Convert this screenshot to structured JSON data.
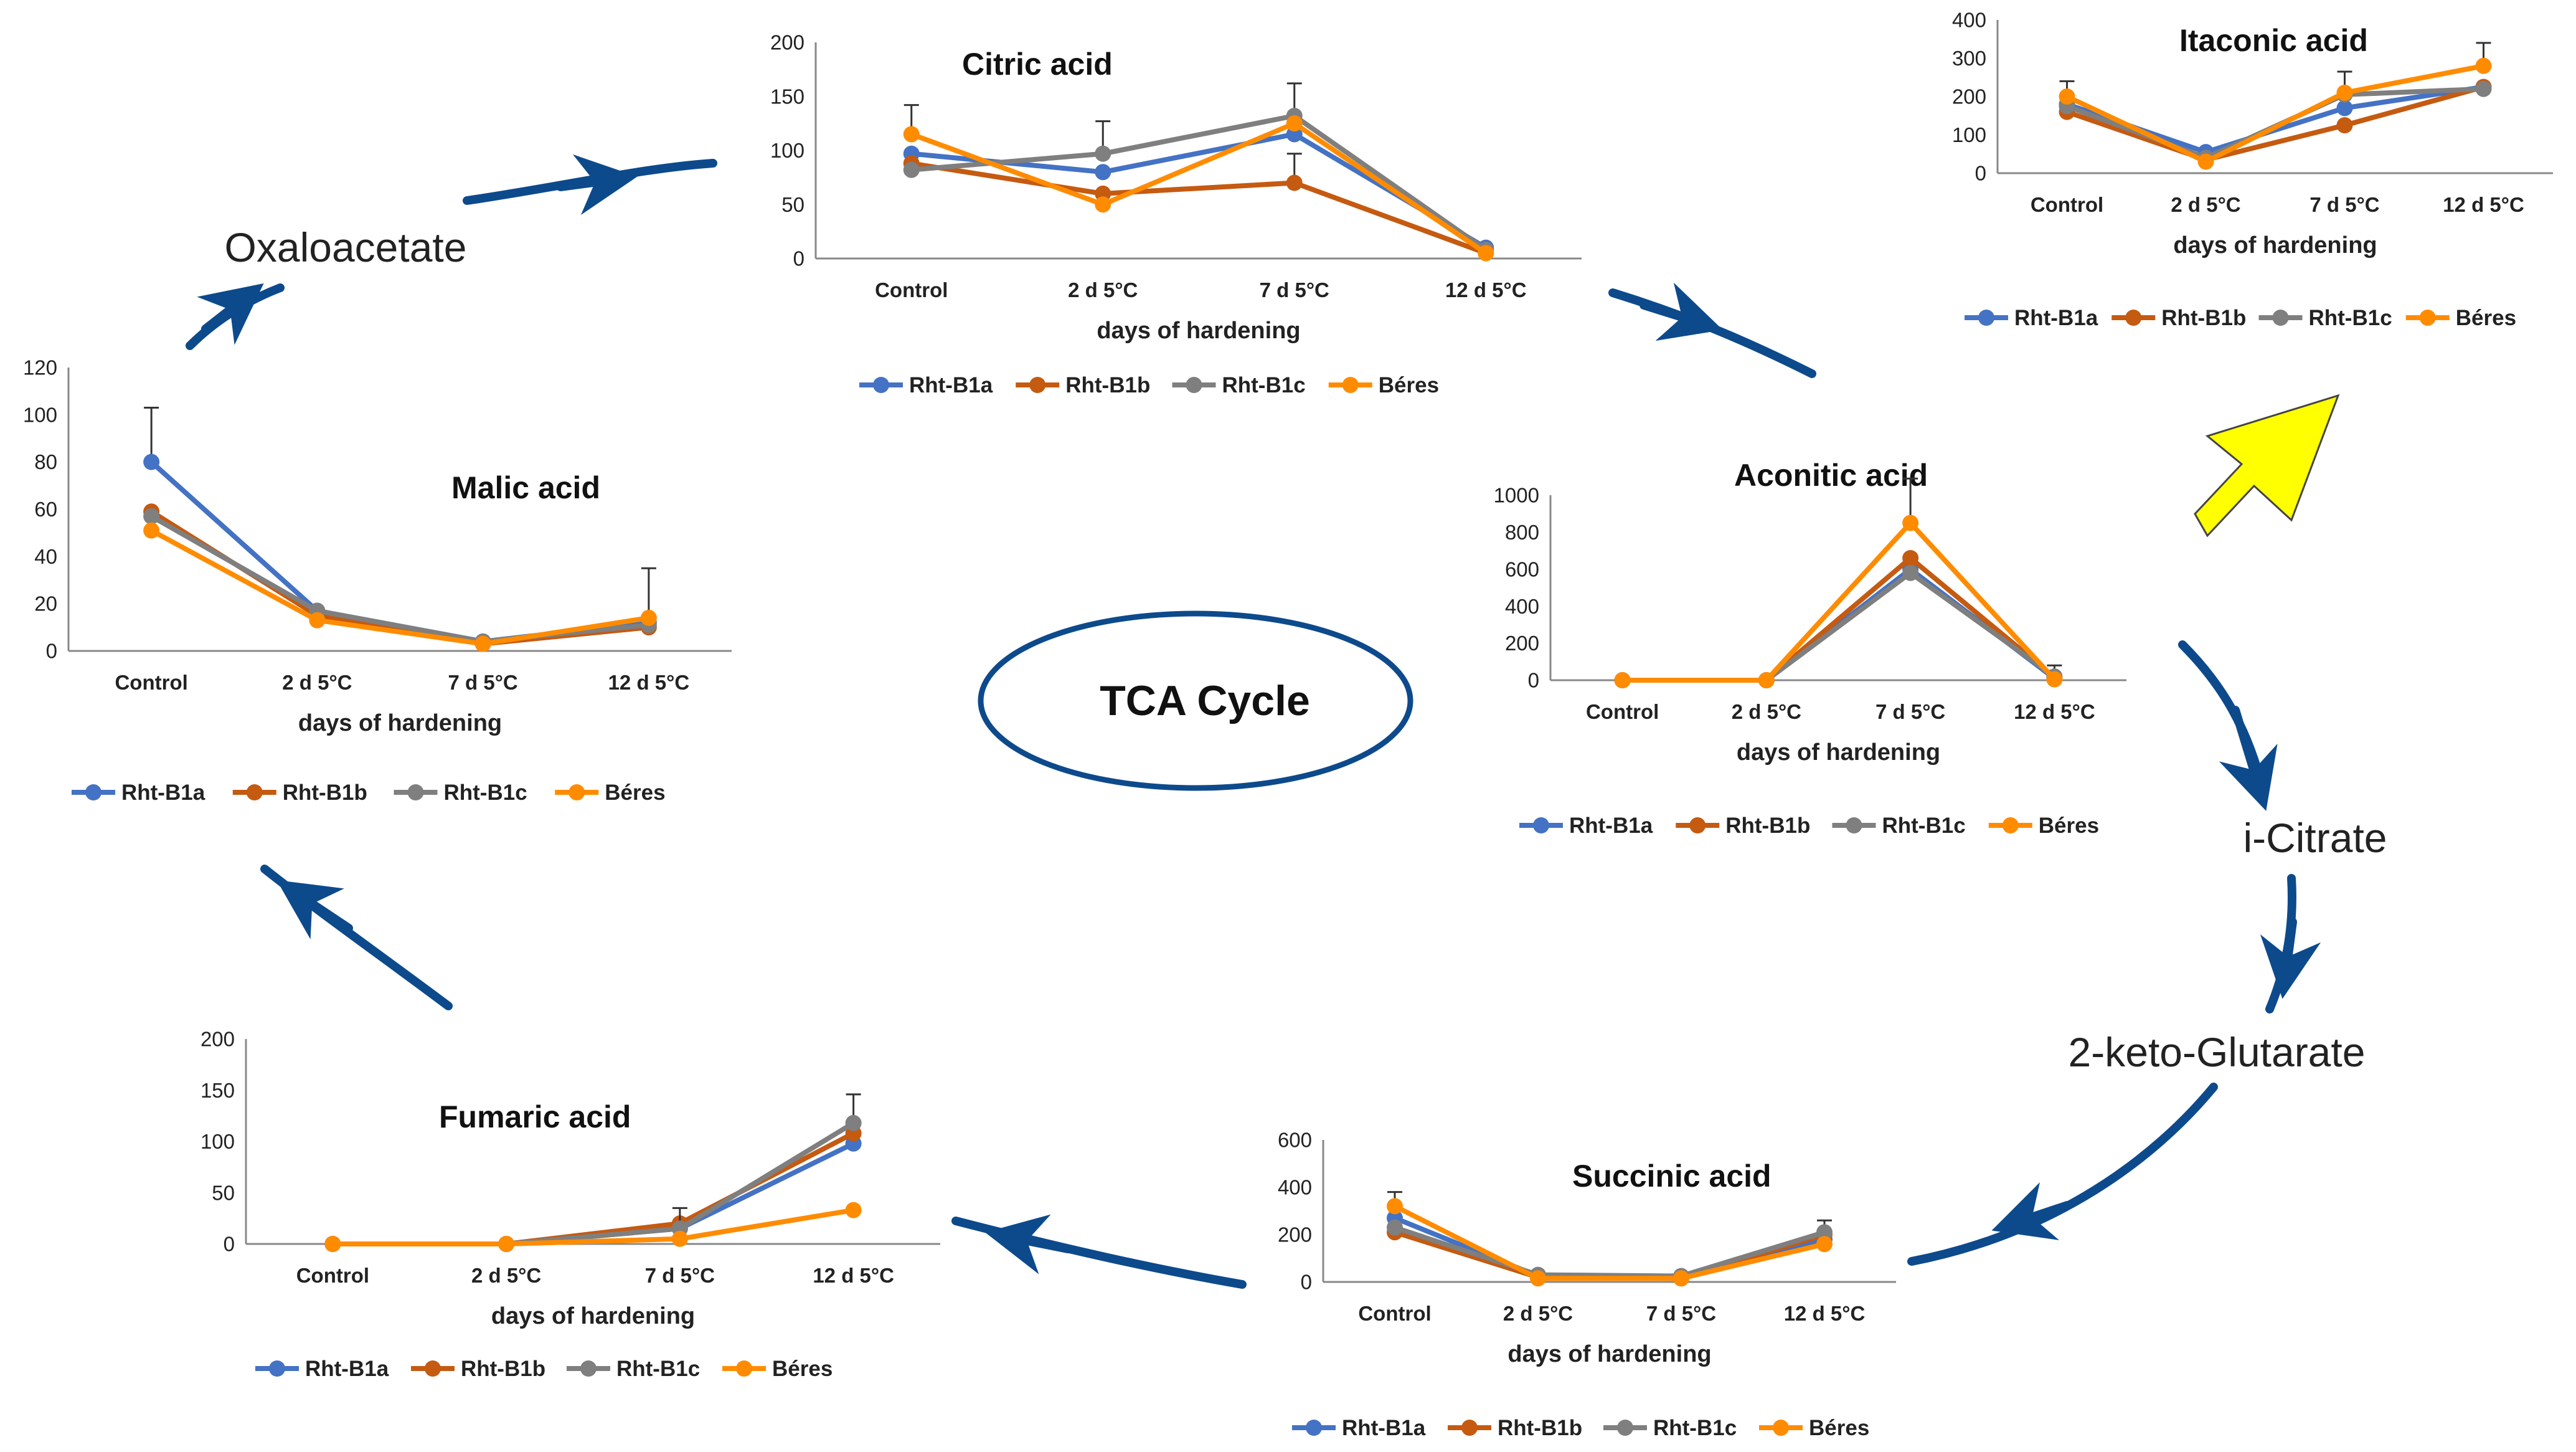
{
  "colors": {
    "Rht-B1a": "#4472C4",
    "Rht-B1b": "#C55A11",
    "Rht-B1c": "#7F7F7F",
    "Béres": "#FF8C00",
    "cycle": "#0D4A8C",
    "highlight_arrow": "#FFFF00"
  },
  "cycle": {
    "center_label": "TCA Cycle",
    "intermediates": {
      "oxaloacetate": "Oxaloacetate",
      "i_citrate": "i-Citrate",
      "keto_glutarate": "2-keto-Glutarate"
    }
  },
  "chart_data": [
    {
      "id": "citric",
      "type": "line",
      "title": "Citric acid",
      "xlabel": "days of hardening",
      "ylabel": "",
      "categories": [
        "Control",
        "2 d 5°C",
        "7 d 5°C",
        "12 d 5°C"
      ],
      "ylim": [
        0,
        200
      ],
      "yticks": [
        0,
        50,
        100,
        150,
        200
      ],
      "series": [
        {
          "name": "Rht-B1a",
          "values": [
            97,
            80,
            115,
            10
          ],
          "errors": [
            0,
            0,
            0,
            0
          ]
        },
        {
          "name": "Rht-B1b",
          "values": [
            88,
            60,
            70,
            5
          ],
          "errors": [
            0,
            0,
            27,
            0
          ]
        },
        {
          "name": "Rht-B1c",
          "values": [
            82,
            97,
            132,
            8
          ],
          "errors": [
            0,
            30,
            30,
            0
          ]
        },
        {
          "name": "Béres",
          "values": [
            115,
            50,
            125,
            5
          ],
          "errors": [
            27,
            0,
            0,
            0
          ]
        }
      ]
    },
    {
      "id": "itaconic",
      "type": "line",
      "title": "Itaconic acid",
      "xlabel": "days of hardening",
      "ylabel": "",
      "categories": [
        "Control",
        "2 d 5°C",
        "7 d 5°C",
        "12 d 5°C"
      ],
      "ylim": [
        0,
        400
      ],
      "yticks": [
        0,
        100,
        200,
        300,
        400
      ],
      "series": [
        {
          "name": "Rht-B1a",
          "values": [
            180,
            55,
            170,
            225
          ],
          "errors": [
            0,
            0,
            0,
            0
          ]
        },
        {
          "name": "Rht-B1b",
          "values": [
            160,
            35,
            125,
            225
          ],
          "errors": [
            0,
            0,
            0,
            0
          ]
        },
        {
          "name": "Rht-B1c",
          "values": [
            175,
            40,
            205,
            220
          ],
          "errors": [
            0,
            0,
            60,
            0
          ]
        },
        {
          "name": "Béres",
          "values": [
            200,
            30,
            210,
            280
          ],
          "errors": [
            40,
            0,
            0,
            60
          ]
        }
      ]
    },
    {
      "id": "malic",
      "type": "line",
      "title": "Malic acid",
      "xlabel": "days of hardening",
      "ylabel": "",
      "categories": [
        "Control",
        "2 d 5°C",
        "7 d 5°C",
        "12 d 5°C"
      ],
      "ylim": [
        0,
        120
      ],
      "yticks": [
        0,
        20,
        40,
        60,
        80,
        100,
        120
      ],
      "series": [
        {
          "name": "Rht-B1a",
          "values": [
            80,
            17,
            4,
            12
          ],
          "errors": [
            23,
            0,
            0,
            0
          ]
        },
        {
          "name": "Rht-B1b",
          "values": [
            59,
            15,
            3,
            10
          ],
          "errors": [
            0,
            0,
            0,
            0
          ]
        },
        {
          "name": "Rht-B1c",
          "values": [
            57,
            17,
            4,
            11
          ],
          "errors": [
            0,
            0,
            0,
            0
          ]
        },
        {
          "name": "Béres",
          "values": [
            51,
            13,
            3,
            14
          ],
          "errors": [
            0,
            0,
            0,
            21
          ]
        }
      ]
    },
    {
      "id": "aconitic",
      "type": "line",
      "title": "Aconitic acid",
      "xlabel": "days of hardening",
      "ylabel": "",
      "categories": [
        "Control",
        "2 d 5°C",
        "7 d 5°C",
        "12 d 5°C"
      ],
      "ylim": [
        0,
        1000
      ],
      "yticks": [
        0,
        200,
        400,
        600,
        800,
        1000
      ],
      "series": [
        {
          "name": "Rht-B1a",
          "values": [
            0,
            0,
            600,
            10
          ],
          "errors": [
            0,
            0,
            0,
            0
          ]
        },
        {
          "name": "Rht-B1b",
          "values": [
            0,
            0,
            660,
            15
          ],
          "errors": [
            0,
            0,
            0,
            0
          ]
        },
        {
          "name": "Rht-B1c",
          "values": [
            0,
            0,
            580,
            20
          ],
          "errors": [
            0,
            0,
            0,
            60
          ]
        },
        {
          "name": "Béres",
          "values": [
            0,
            0,
            850,
            5
          ],
          "errors": [
            0,
            0,
            240,
            0
          ]
        }
      ]
    },
    {
      "id": "fumaric",
      "type": "line",
      "title": "Fumaric acid",
      "xlabel": "days of hardening",
      "ylabel": "",
      "categories": [
        "Control",
        "2 d 5°C",
        "7 d 5°C",
        "12 d 5°C"
      ],
      "ylim": [
        0,
        200
      ],
      "yticks": [
        0,
        50,
        100,
        150,
        200
      ],
      "series": [
        {
          "name": "Rht-B1a",
          "values": [
            0,
            0,
            15,
            98
          ],
          "errors": [
            0,
            0,
            0,
            0
          ]
        },
        {
          "name": "Rht-B1b",
          "values": [
            0,
            0,
            20,
            108
          ],
          "errors": [
            0,
            0,
            0,
            0
          ]
        },
        {
          "name": "Rht-B1c",
          "values": [
            0,
            0,
            15,
            118
          ],
          "errors": [
            0,
            0,
            20,
            28
          ]
        },
        {
          "name": "Béres",
          "values": [
            0,
            0,
            5,
            33
          ],
          "errors": [
            0,
            0,
            0,
            0
          ]
        }
      ]
    },
    {
      "id": "succinic",
      "type": "line",
      "title": "Succinic acid",
      "xlabel": "days of hardening",
      "ylabel": "",
      "categories": [
        "Control",
        "2 d 5°C",
        "7 d 5°C",
        "12 d 5°C"
      ],
      "ylim": [
        0,
        600
      ],
      "yticks": [
        0,
        200,
        400,
        600
      ],
      "series": [
        {
          "name": "Rht-B1a",
          "values": [
            270,
            25,
            20,
            180
          ],
          "errors": [
            0,
            0,
            0,
            0
          ]
        },
        {
          "name": "Rht-B1b",
          "values": [
            210,
            20,
            15,
            200
          ],
          "errors": [
            0,
            0,
            0,
            0
          ]
        },
        {
          "name": "Rht-B1c",
          "values": [
            230,
            30,
            25,
            210
          ],
          "errors": [
            0,
            0,
            0,
            50
          ]
        },
        {
          "name": "Béres",
          "values": [
            320,
            15,
            15,
            160
          ],
          "errors": [
            60,
            0,
            0,
            0
          ]
        }
      ]
    }
  ]
}
